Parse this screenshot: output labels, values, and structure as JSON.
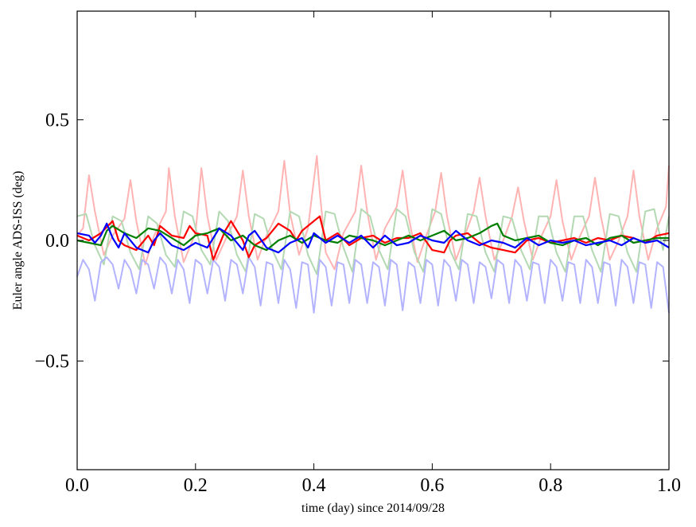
{
  "chart_data": {
    "type": "line",
    "xlabel": "time (day) since 2014/09/28",
    "ylabel": "Euler angle ADS-ISS (deg)",
    "xlim": [
      0.0,
      1.0
    ],
    "ylim": [
      -0.95,
      0.95
    ],
    "xticks": [
      0.0,
      0.2,
      0.4,
      0.6,
      0.8,
      1.0
    ],
    "xtick_labels": [
      "0.0",
      "0.2",
      "0.4",
      "0.6",
      "0.8",
      "1.0"
    ],
    "yticks": [
      -0.5,
      0.0,
      0.5
    ],
    "ytick_labels": [
      "−0.5",
      "0.0",
      "0.5"
    ],
    "grid": false,
    "series": [
      {
        "color": "#ffb3b3",
        "style": "faint",
        "x": [
          0.0,
          0.01,
          0.02,
          0.03,
          0.045,
          0.06,
          0.08,
          0.09,
          0.1,
          0.115,
          0.13,
          0.15,
          0.155,
          0.165,
          0.18,
          0.2,
          0.21,
          0.22,
          0.235,
          0.25,
          0.27,
          0.28,
          0.29,
          0.305,
          0.32,
          0.34,
          0.35,
          0.36,
          0.375,
          0.39,
          0.405,
          0.41,
          0.42,
          0.435,
          0.45,
          0.47,
          0.48,
          0.49,
          0.505,
          0.52,
          0.54,
          0.55,
          0.56,
          0.575,
          0.59,
          0.605,
          0.615,
          0.625,
          0.64,
          0.655,
          0.67,
          0.68,
          0.69,
          0.705,
          0.72,
          0.735,
          0.745,
          0.755,
          0.77,
          0.785,
          0.8,
          0.81,
          0.82,
          0.835,
          0.85,
          0.865,
          0.875,
          0.885,
          0.9,
          0.915,
          0.93,
          0.94,
          0.95,
          0.965,
          0.98,
          0.995,
          1.0
        ],
        "values": [
          0.02,
          0.05,
          0.27,
          0.12,
          -0.06,
          0.02,
          0.09,
          0.25,
          0.08,
          -0.1,
          0.02,
          0.12,
          0.3,
          0.1,
          -0.09,
          0.03,
          0.3,
          0.1,
          -0.08,
          0.0,
          0.1,
          0.29,
          0.1,
          -0.08,
          0.02,
          0.12,
          0.33,
          0.11,
          -0.06,
          0.05,
          0.35,
          0.2,
          -0.05,
          -0.12,
          0.03,
          0.12,
          0.31,
          0.12,
          -0.08,
          0.05,
          0.14,
          0.29,
          0.1,
          -0.09,
          0.02,
          0.12,
          0.28,
          0.1,
          -0.08,
          0.02,
          0.12,
          0.26,
          0.1,
          -0.08,
          0.0,
          0.1,
          0.22,
          0.08,
          -0.08,
          0.02,
          0.1,
          0.25,
          0.08,
          -0.08,
          0.02,
          0.1,
          0.26,
          0.1,
          -0.08,
          0.0,
          0.1,
          0.29,
          0.1,
          -0.08,
          0.05,
          0.14,
          0.31
        ]
      },
      {
        "color": "#b3d9b3",
        "style": "faint",
        "x": [
          0.0,
          0.015,
          0.03,
          0.045,
          0.06,
          0.075,
          0.09,
          0.105,
          0.12,
          0.135,
          0.15,
          0.165,
          0.18,
          0.195,
          0.21,
          0.225,
          0.24,
          0.255,
          0.27,
          0.285,
          0.3,
          0.315,
          0.33,
          0.345,
          0.36,
          0.375,
          0.39,
          0.405,
          0.42,
          0.435,
          0.45,
          0.465,
          0.48,
          0.495,
          0.51,
          0.525,
          0.54,
          0.555,
          0.57,
          0.585,
          0.6,
          0.615,
          0.63,
          0.645,
          0.66,
          0.675,
          0.69,
          0.705,
          0.72,
          0.735,
          0.75,
          0.765,
          0.78,
          0.795,
          0.81,
          0.825,
          0.84,
          0.855,
          0.87,
          0.885,
          0.9,
          0.915,
          0.93,
          0.945,
          0.96,
          0.975,
          0.99,
          1.0
        ],
        "values": [
          0.1,
          0.11,
          -0.02,
          -0.1,
          0.1,
          0.08,
          -0.05,
          -0.12,
          0.1,
          0.07,
          -0.06,
          -0.11,
          0.12,
          0.1,
          -0.04,
          -0.1,
          0.12,
          0.08,
          -0.06,
          -0.13,
          0.11,
          0.09,
          -0.04,
          -0.12,
          0.12,
          0.1,
          -0.06,
          -0.14,
          0.12,
          0.11,
          -0.03,
          -0.13,
          0.13,
          0.1,
          -0.04,
          -0.12,
          0.13,
          0.1,
          -0.05,
          -0.13,
          0.13,
          0.11,
          -0.04,
          -0.12,
          0.11,
          0.1,
          -0.05,
          -0.13,
          0.1,
          0.09,
          -0.04,
          -0.12,
          0.1,
          0.1,
          -0.05,
          -0.13,
          0.1,
          0.1,
          -0.04,
          -0.13,
          0.11,
          0.1,
          -0.05,
          -0.13,
          0.12,
          0.13,
          -0.04,
          0.1
        ]
      },
      {
        "color": "#b3b3ff",
        "style": "faint",
        "x": [
          0.0,
          0.01,
          0.02,
          0.03,
          0.04,
          0.05,
          0.06,
          0.07,
          0.08,
          0.09,
          0.1,
          0.11,
          0.12,
          0.13,
          0.14,
          0.15,
          0.16,
          0.17,
          0.18,
          0.19,
          0.2,
          0.21,
          0.22,
          0.23,
          0.24,
          0.25,
          0.26,
          0.27,
          0.28,
          0.29,
          0.3,
          0.31,
          0.32,
          0.33,
          0.34,
          0.35,
          0.36,
          0.37,
          0.38,
          0.39,
          0.4,
          0.41,
          0.42,
          0.43,
          0.44,
          0.45,
          0.46,
          0.47,
          0.48,
          0.49,
          0.5,
          0.51,
          0.52,
          0.53,
          0.54,
          0.55,
          0.56,
          0.57,
          0.58,
          0.59,
          0.6,
          0.61,
          0.62,
          0.63,
          0.64,
          0.65,
          0.66,
          0.67,
          0.68,
          0.69,
          0.7,
          0.71,
          0.72,
          0.73,
          0.74,
          0.75,
          0.76,
          0.77,
          0.78,
          0.79,
          0.8,
          0.81,
          0.82,
          0.83,
          0.84,
          0.85,
          0.86,
          0.87,
          0.88,
          0.89,
          0.9,
          0.91,
          0.92,
          0.93,
          0.94,
          0.95,
          0.96,
          0.97,
          0.98,
          0.99,
          1.0
        ],
        "values": [
          -0.15,
          -0.08,
          -0.12,
          -0.25,
          -0.09,
          -0.07,
          -0.1,
          -0.2,
          -0.08,
          -0.12,
          -0.22,
          -0.08,
          -0.1,
          -0.2,
          -0.07,
          -0.1,
          -0.22,
          -0.08,
          -0.12,
          -0.26,
          -0.08,
          -0.1,
          -0.22,
          -0.08,
          -0.11,
          -0.25,
          -0.08,
          -0.1,
          -0.22,
          -0.07,
          -0.11,
          -0.27,
          -0.09,
          -0.1,
          -0.26,
          -0.08,
          -0.12,
          -0.28,
          -0.09,
          -0.1,
          -0.3,
          -0.08,
          -0.11,
          -0.27,
          -0.09,
          -0.1,
          -0.26,
          -0.08,
          -0.1,
          -0.26,
          -0.09,
          -0.11,
          -0.27,
          -0.08,
          -0.1,
          -0.29,
          -0.09,
          -0.11,
          -0.26,
          -0.08,
          -0.1,
          -0.27,
          -0.08,
          -0.11,
          -0.25,
          -0.08,
          -0.1,
          -0.26,
          -0.09,
          -0.11,
          -0.24,
          -0.08,
          -0.1,
          -0.26,
          -0.08,
          -0.11,
          -0.25,
          -0.09,
          -0.1,
          -0.26,
          -0.08,
          -0.11,
          -0.25,
          -0.09,
          -0.1,
          -0.26,
          -0.08,
          -0.11,
          -0.26,
          -0.09,
          -0.1,
          -0.27,
          -0.08,
          -0.11,
          -0.26,
          -0.09,
          -0.1,
          -0.28,
          -0.09,
          -0.11,
          -0.3
        ]
      },
      {
        "color": "#ff0000",
        "style": "bold",
        "x": [
          0.0,
          0.02,
          0.04,
          0.06,
          0.07,
          0.08,
          0.1,
          0.12,
          0.13,
          0.14,
          0.16,
          0.18,
          0.19,
          0.2,
          0.22,
          0.23,
          0.25,
          0.26,
          0.27,
          0.28,
          0.29,
          0.3,
          0.32,
          0.34,
          0.36,
          0.37,
          0.38,
          0.4,
          0.41,
          0.42,
          0.44,
          0.46,
          0.48,
          0.5,
          0.52,
          0.54,
          0.56,
          0.58,
          0.6,
          0.62,
          0.63,
          0.64,
          0.66,
          0.68,
          0.7,
          0.72,
          0.74,
          0.76,
          0.78,
          0.8,
          0.82,
          0.84,
          0.86,
          0.88,
          0.9,
          0.92,
          0.94,
          0.96,
          0.98,
          1.0
        ],
        "values": [
          0.02,
          0.0,
          0.03,
          0.08,
          0.0,
          -0.02,
          -0.04,
          0.02,
          -0.02,
          0.06,
          0.02,
          0.01,
          0.06,
          0.03,
          0.02,
          -0.08,
          0.04,
          0.08,
          0.04,
          0.0,
          -0.07,
          -0.02,
          0.01,
          0.07,
          0.04,
          0.0,
          0.04,
          0.08,
          0.1,
          0.0,
          0.03,
          -0.02,
          0.01,
          0.02,
          -0.01,
          0.01,
          0.01,
          0.03,
          -0.04,
          -0.05,
          0.0,
          0.02,
          0.03,
          -0.01,
          -0.03,
          -0.04,
          -0.05,
          0.0,
          0.01,
          -0.01,
          0.0,
          0.01,
          -0.01,
          0.01,
          0.0,
          0.02,
          0.01,
          -0.01,
          0.02,
          0.03
        ]
      },
      {
        "color": "#007f00",
        "style": "bold",
        "x": [
          0.0,
          0.02,
          0.04,
          0.05,
          0.06,
          0.08,
          0.1,
          0.12,
          0.14,
          0.16,
          0.18,
          0.2,
          0.22,
          0.24,
          0.26,
          0.28,
          0.3,
          0.32,
          0.34,
          0.36,
          0.38,
          0.4,
          0.42,
          0.44,
          0.46,
          0.48,
          0.5,
          0.52,
          0.54,
          0.56,
          0.58,
          0.6,
          0.62,
          0.64,
          0.66,
          0.68,
          0.7,
          0.71,
          0.72,
          0.74,
          0.76,
          0.78,
          0.8,
          0.82,
          0.84,
          0.86,
          0.88,
          0.9,
          0.92,
          0.94,
          0.96,
          0.98,
          1.0
        ],
        "values": [
          0.0,
          -0.01,
          -0.02,
          0.04,
          0.06,
          0.03,
          0.01,
          0.05,
          0.04,
          0.01,
          -0.02,
          0.02,
          0.03,
          0.05,
          0.0,
          0.02,
          -0.02,
          -0.04,
          0.0,
          0.02,
          -0.01,
          0.02,
          0.0,
          -0.01,
          0.02,
          0.01,
          0.0,
          -0.02,
          0.0,
          0.02,
          0.0,
          0.02,
          0.04,
          0.0,
          0.01,
          0.03,
          0.06,
          0.07,
          0.02,
          0.0,
          0.01,
          0.02,
          -0.01,
          -0.02,
          0.0,
          0.01,
          -0.02,
          0.01,
          0.02,
          -0.01,
          0.0,
          0.01,
          0.01
        ]
      },
      {
        "color": "#0000ff",
        "style": "bold",
        "x": [
          0.0,
          0.02,
          0.03,
          0.04,
          0.05,
          0.06,
          0.07,
          0.08,
          0.1,
          0.12,
          0.13,
          0.14,
          0.16,
          0.18,
          0.2,
          0.22,
          0.24,
          0.26,
          0.28,
          0.29,
          0.3,
          0.32,
          0.34,
          0.36,
          0.38,
          0.39,
          0.4,
          0.42,
          0.44,
          0.46,
          0.48,
          0.5,
          0.52,
          0.54,
          0.56,
          0.58,
          0.6,
          0.62,
          0.64,
          0.66,
          0.68,
          0.7,
          0.72,
          0.74,
          0.76,
          0.78,
          0.8,
          0.82,
          0.84,
          0.86,
          0.88,
          0.9,
          0.92,
          0.94,
          0.96,
          0.98,
          1.0
        ],
        "values": [
          0.03,
          0.02,
          -0.01,
          0.02,
          0.07,
          0.01,
          -0.03,
          0.03,
          -0.03,
          -0.05,
          0.0,
          0.03,
          -0.02,
          -0.04,
          -0.01,
          -0.03,
          0.05,
          0.02,
          -0.04,
          0.02,
          0.04,
          -0.03,
          -0.05,
          -0.01,
          0.01,
          -0.03,
          0.03,
          -0.01,
          0.02,
          -0.01,
          0.02,
          -0.03,
          0.02,
          -0.02,
          -0.01,
          0.02,
          0.0,
          -0.01,
          0.04,
          0.0,
          -0.02,
          0.0,
          -0.01,
          -0.03,
          0.01,
          -0.02,
          0.0,
          -0.01,
          0.0,
          -0.02,
          -0.01,
          0.0,
          -0.02,
          0.01,
          -0.01,
          0.0,
          -0.03
        ]
      }
    ]
  }
}
